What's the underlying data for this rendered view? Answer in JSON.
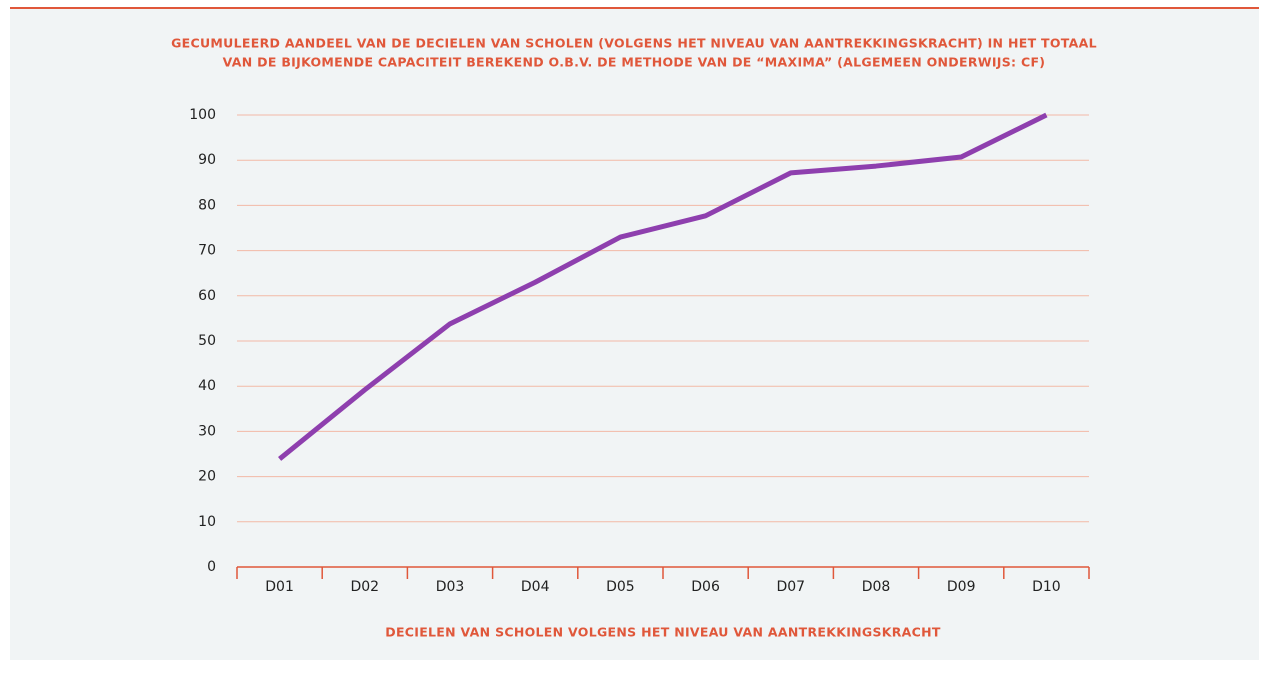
{
  "chart_data": {
    "type": "line",
    "title": [
      "GECUMULEERD AANDEEL VAN DE DECIELEN VAN SCHOLEN (VOLGENS HET NIVEAU VAN AANTREKKINGSKRACHT) IN HET TOTAAL",
      "VAN DE BIJKOMENDE CAPACITEIT BEREKEND O.B.V. DE METHODE VAN DE “MAXIMA” (ALGEMEEN ONDERWIJS: CF)"
    ],
    "x_label": "DECIELEN VAN SCHOLEN VOLGENS HET NIVEAU VAN AANTREKKINGSKRACHT",
    "categories": [
      "D01",
      "D02",
      "D03",
      "D04",
      "D05",
      "D06",
      "D07",
      "D08",
      "D09",
      "D10"
    ],
    "values": [
      23.9,
      39.2,
      53.8,
      63,
      73,
      77.7,
      87.2,
      88.7,
      90.7,
      100
    ],
    "color": "#8e3fae",
    "ylim": [
      0,
      100
    ],
    "yticks": [
      0,
      10,
      20,
      30,
      40,
      50,
      60,
      70,
      80,
      90,
      100
    ],
    "grid": true
  }
}
